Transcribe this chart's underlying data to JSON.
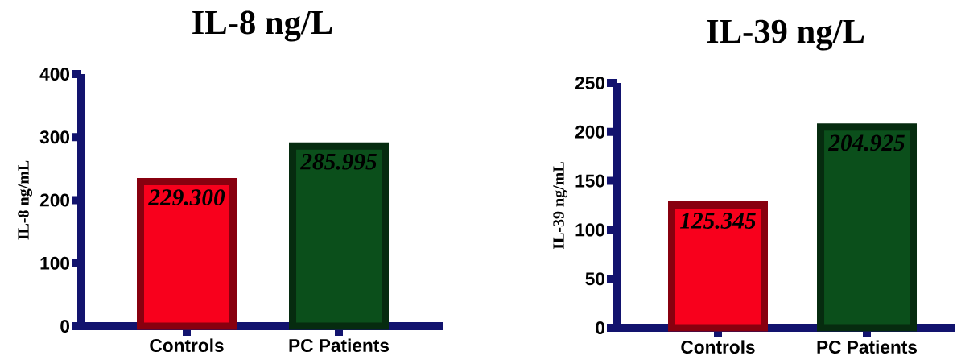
{
  "chart_data": [
    {
      "type": "bar",
      "title": "IL-8   ng/L",
      "ylabel": "IL-8   ng/mL",
      "categories": [
        "Controls",
        "PC Patients"
      ],
      "values": [
        229.3,
        285.995
      ],
      "value_labels": [
        "229.300",
        "285.995"
      ],
      "colors": [
        "#f8001c",
        "#0b4f1b"
      ],
      "ylim": [
        0,
        400
      ],
      "yticks": [
        0,
        100,
        200,
        300,
        400
      ]
    },
    {
      "type": "bar",
      "title": "IL-39   ng/L",
      "ylabel": "IL-39   ng/mL",
      "categories": [
        "Controls",
        "PC Patients"
      ],
      "values": [
        125.345,
        204.925
      ],
      "value_labels": [
        "125.345",
        "204.925"
      ],
      "colors": [
        "#f8001c",
        "#0b4f1b"
      ],
      "ylim": [
        0,
        250
      ],
      "yticks": [
        0,
        50,
        100,
        150,
        200,
        250
      ]
    }
  ]
}
